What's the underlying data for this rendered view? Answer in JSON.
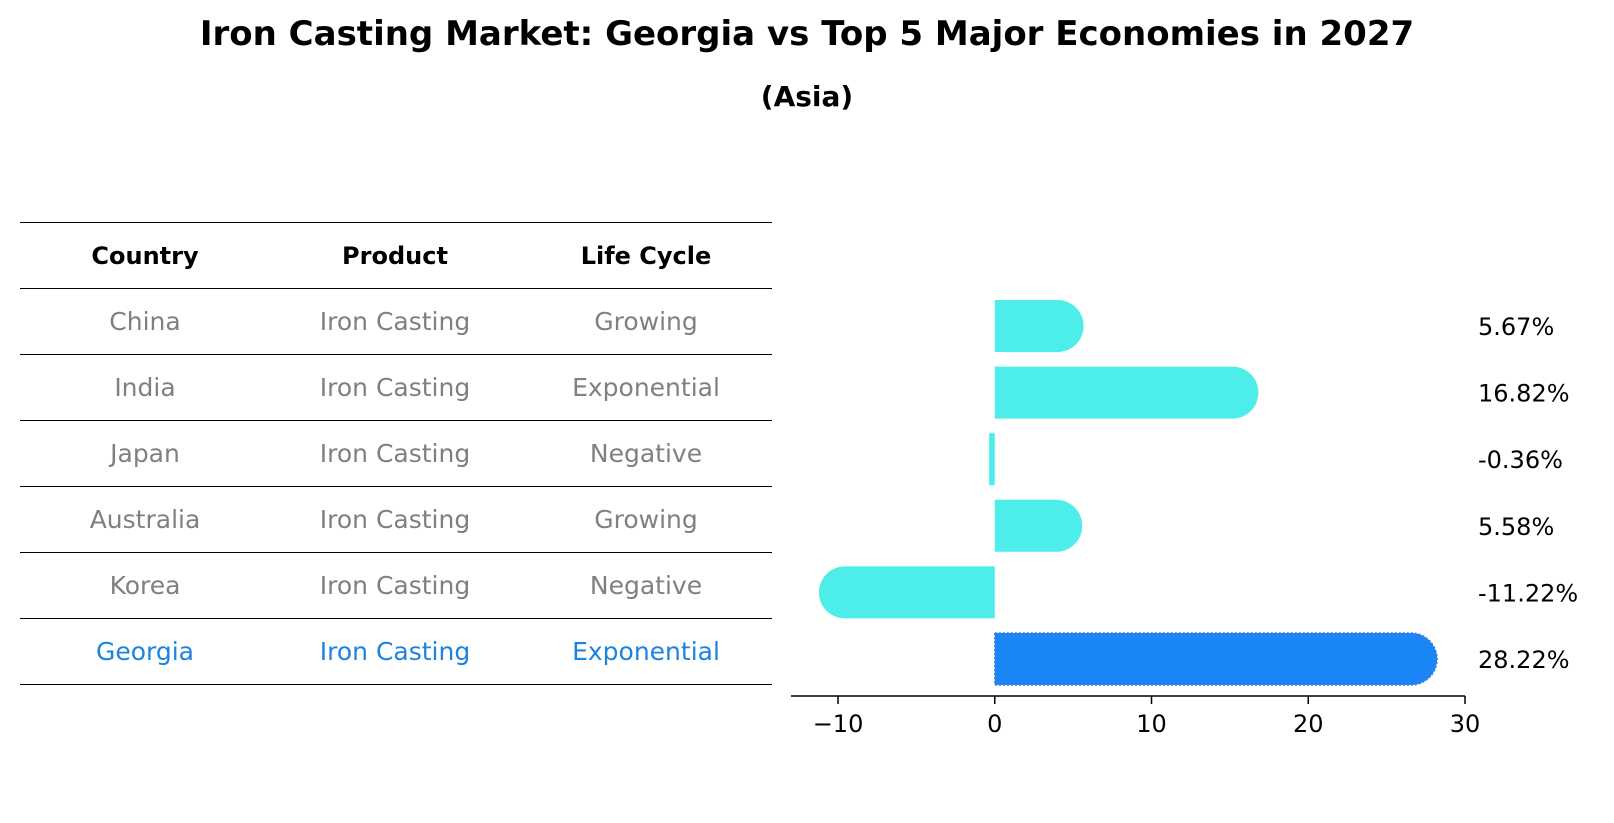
{
  "title": "Iron Casting Market: Georgia vs Top 5 Major Economies in 2027",
  "subtitle": "(Asia)",
  "table": {
    "headers": [
      "Country",
      "Product",
      "Life Cycle"
    ],
    "rows": [
      {
        "country": "China",
        "product": "Iron Casting",
        "life_cycle": "Growing"
      },
      {
        "country": "India",
        "product": "Iron Casting",
        "life_cycle": "Exponential"
      },
      {
        "country": "Japan",
        "product": "Iron Casting",
        "life_cycle": "Negative"
      },
      {
        "country": "Australia",
        "product": "Iron Casting",
        "life_cycle": "Growing"
      },
      {
        "country": "Korea",
        "product": "Iron Casting",
        "life_cycle": "Negative"
      },
      {
        "country": "Georgia",
        "product": "Iron Casting",
        "life_cycle": "Exponential"
      }
    ]
  },
  "colors": {
    "bar": "#4deeea",
    "highlight_bar": "#1a85f5",
    "highlight_text": "#1c83e1",
    "muted_text": "#808080"
  },
  "chart_data": {
    "type": "bar",
    "orientation": "horizontal",
    "categories": [
      "China",
      "India",
      "Japan",
      "Australia",
      "Korea",
      "Georgia"
    ],
    "values": [
      5.67,
      16.82,
      -0.36,
      5.58,
      -11.22,
      28.22
    ],
    "value_labels": [
      "5.67%",
      "16.82%",
      "-0.36%",
      "5.58%",
      "-11.22%",
      "28.22%"
    ],
    "highlight": "Georgia",
    "xlim": [
      -13,
      30
    ],
    "xticks": [
      -10,
      0,
      10,
      20,
      30
    ],
    "xtick_labels": [
      "−10",
      "0",
      "10",
      "20",
      "30"
    ],
    "title": "Iron Casting Market: Georgia vs Top 5 Major Economies in 2027",
    "subtitle": "(Asia)",
    "xlabel": "",
    "ylabel": ""
  }
}
